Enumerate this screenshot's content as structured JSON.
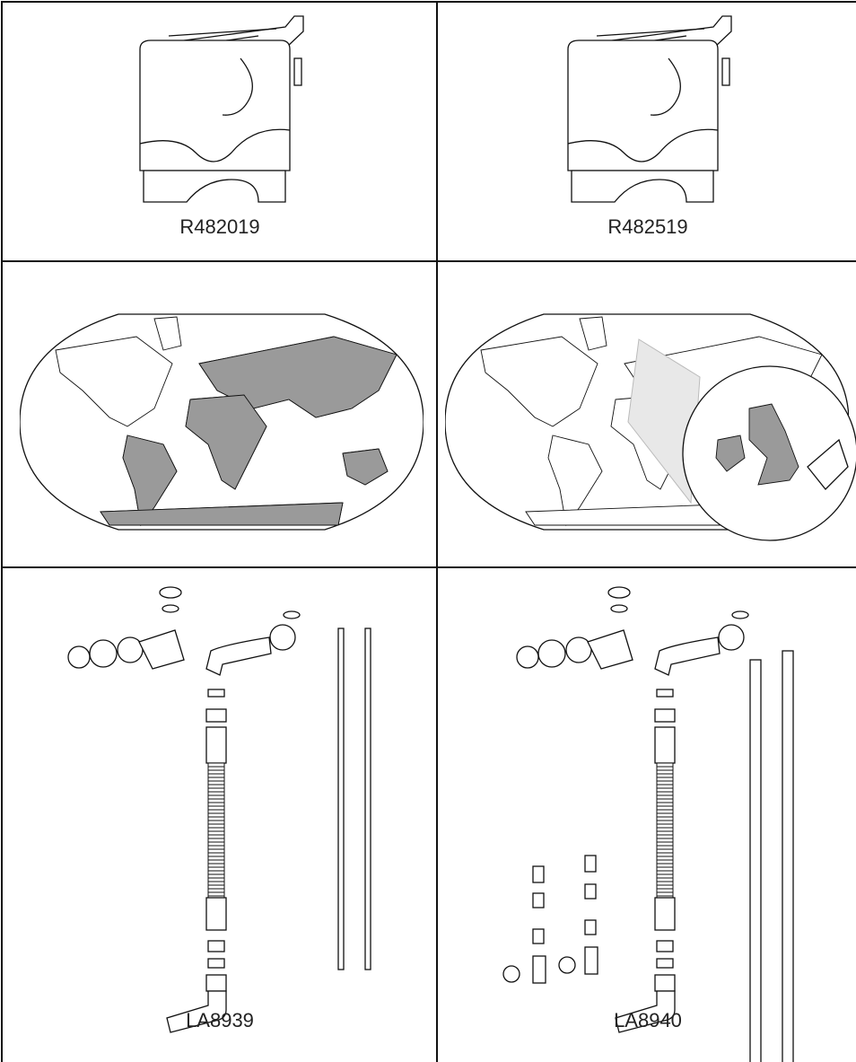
{
  "labels": [
    "R482019",
    "R482519",
    "LA8939",
    "LA8940"
  ]
}
